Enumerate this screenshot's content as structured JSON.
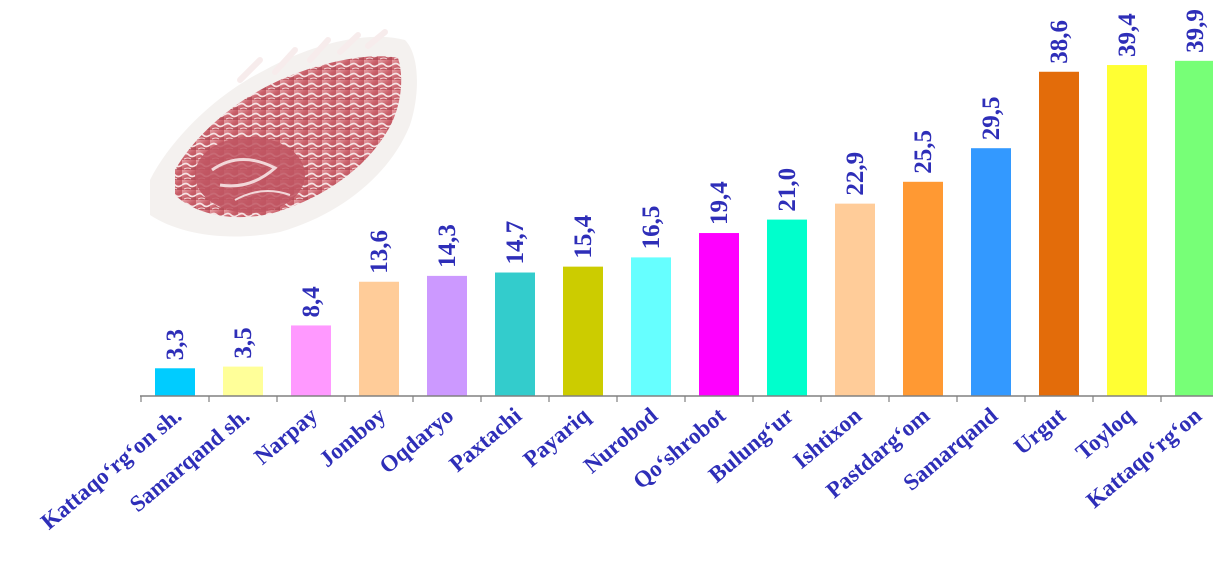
{
  "chart_data": {
    "type": "bar",
    "title": "",
    "xlabel": "",
    "ylabel": "",
    "ylim": [
      0,
      40
    ],
    "grid": false,
    "legend": "none",
    "categories": [
      "Kattaqo‘rg‘on sh.",
      "Samarqand sh.",
      "Narpay",
      "Jomboy",
      "Oqdaryo",
      "Paxtachi",
      "Payariq",
      "Nurobod",
      "Qo‘shrobot",
      "Bulung‘ur",
      "Ishtixon",
      "Pastdarg‘om",
      "Samarqand",
      "Urgut",
      "Toyloq",
      "Kattaqo‘rg‘on"
    ],
    "values": [
      3.3,
      3.5,
      8.4,
      13.6,
      14.3,
      14.7,
      15.4,
      16.5,
      19.4,
      21.0,
      22.9,
      25.5,
      29.5,
      38.6,
      39.4,
      39.9
    ],
    "value_labels": [
      "3,3",
      "3,5",
      "8,4",
      "13,6",
      "14,3",
      "14,7",
      "15,4",
      "16,5",
      "19,4",
      "21,0",
      "22,9",
      "25,5",
      "29,5",
      "38,6",
      "39,4",
      "39,9"
    ],
    "colors": [
      "#00ccff",
      "#ffff99",
      "#ff99ff",
      "#ffcc99",
      "#cc99ff",
      "#33cccc",
      "#cccc00",
      "#66ffff",
      "#ff00ff",
      "#00ffcc",
      "#ffcc99",
      "#ff9933",
      "#3399ff",
      "#e36c0a",
      "#ffff33",
      "#77ff77"
    ],
    "axis_color": "#808080",
    "label_color": "#2e2eb8"
  },
  "decoration": {
    "image": "marbled-beef-photo"
  }
}
